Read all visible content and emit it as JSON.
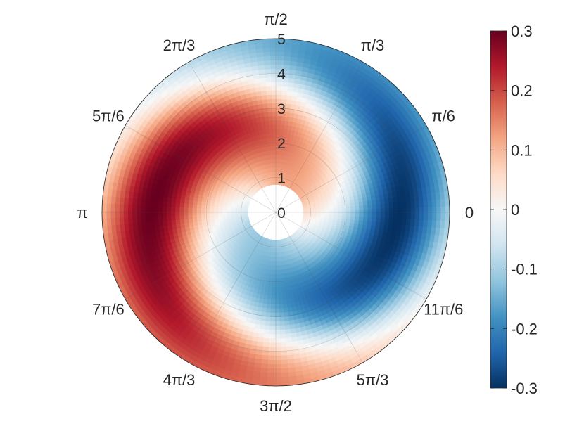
{
  "chart_data": {
    "type": "heatmap",
    "projection": "polar",
    "title": "",
    "angle_ticks": [
      {
        "angle_deg": 0,
        "label": "0"
      },
      {
        "angle_deg": 30,
        "label": "π/6"
      },
      {
        "angle_deg": 60,
        "label": "π/3"
      },
      {
        "angle_deg": 90,
        "label": "π/2"
      },
      {
        "angle_deg": 120,
        "label": "2π/3"
      },
      {
        "angle_deg": 150,
        "label": "5π/6"
      },
      {
        "angle_deg": 180,
        "label": "π"
      },
      {
        "angle_deg": 210,
        "label": "7π/6"
      },
      {
        "angle_deg": 240,
        "label": "4π/3"
      },
      {
        "angle_deg": 270,
        "label": "3π/2"
      },
      {
        "angle_deg": 300,
        "label": "5π/3"
      },
      {
        "angle_deg": 330,
        "label": "11π/6"
      }
    ],
    "radial_ticks": [
      {
        "value": 0,
        "label": "0"
      },
      {
        "value": 1,
        "label": "1"
      },
      {
        "value": 2,
        "label": "2"
      },
      {
        "value": 3,
        "label": "3"
      },
      {
        "value": 4,
        "label": "4"
      },
      {
        "value": 5,
        "label": "5"
      }
    ],
    "r_range": [
      0,
      5
    ],
    "data_r_range": [
      0.8,
      5
    ],
    "clim": [
      -0.3,
      0.3
    ],
    "colormap": [
      "#053061",
      "#2166ac",
      "#4393c3",
      "#92c5de",
      "#d1e5f0",
      "#f7f7f7",
      "#fddbc7",
      "#f4a582",
      "#d6604d",
      "#b2182b",
      "#67001f"
    ],
    "colorbar_ticks": [
      {
        "value": 0.3,
        "label": "0.3"
      },
      {
        "value": 0.2,
        "label": "0.2"
      },
      {
        "value": 0.1,
        "label": "0.1"
      },
      {
        "value": 0,
        "label": "0"
      },
      {
        "value": -0.1,
        "label": "-0.1"
      },
      {
        "value": -0.2,
        "label": "-0.2"
      },
      {
        "value": -0.3,
        "label": "-0.3"
      }
    ],
    "field": {
      "description": "two-armed spiral pattern (cos(θ - k·r) modulated amplitude)",
      "amplitude_peak": 0.3,
      "amplitude_r_center": 3.5,
      "amplitude_r_width": 1.6,
      "phase_offset_deg": 30,
      "spiral_k": 0.45
    },
    "grid": true,
    "colorbar_position": "right"
  }
}
